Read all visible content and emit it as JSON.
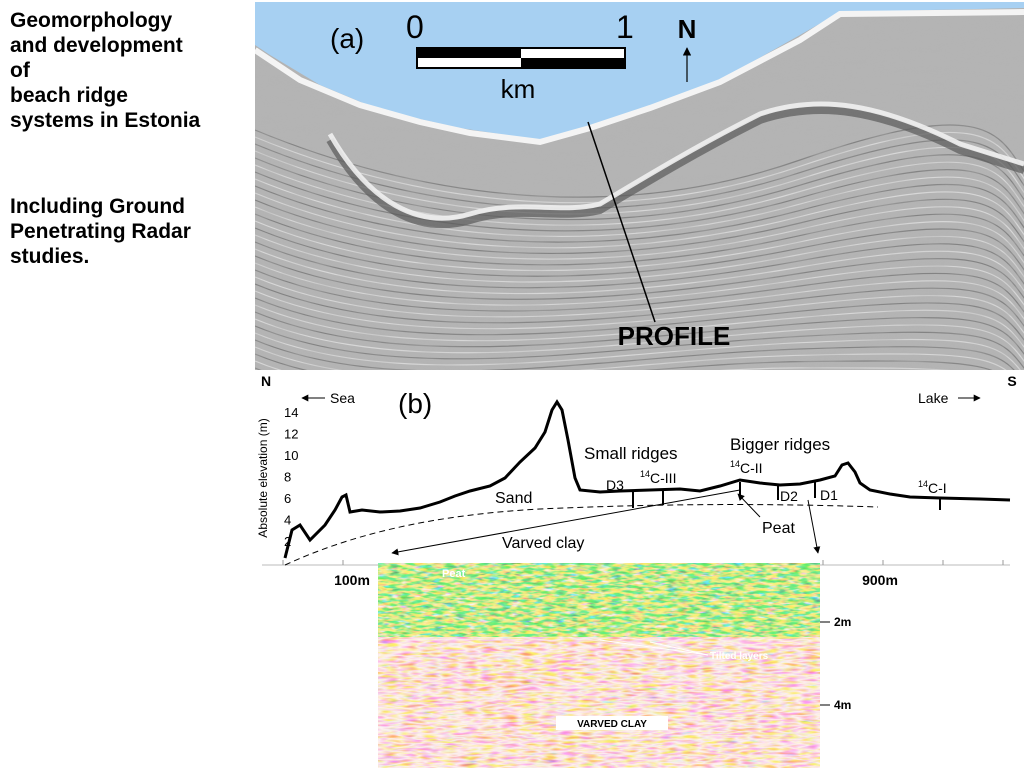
{
  "slide": {
    "title_lines": [
      "Geomorphology",
      "and development",
      "of",
      "beach ridge",
      "systems in Estonia"
    ],
    "subtitle_lines": [
      "Including Ground",
      "Penetrating Radar",
      "studies."
    ]
  },
  "map": {
    "panel": "(a)",
    "scale_start": "0",
    "scale_end": "1",
    "scale_unit": "km",
    "north": "N",
    "profile": "PROFILE"
  },
  "profile": {
    "panel": "(b)",
    "north": "N",
    "south": "S",
    "sea": "Sea",
    "lake": "Lake",
    "y_axis_label": "Absolute elevation (m)",
    "yticks": [
      "14",
      "12",
      "10",
      "8",
      "6",
      "4",
      "2"
    ],
    "small_ridges": "Small ridges",
    "bigger_ridges": "Bigger ridges",
    "sand": "Sand",
    "varved_clay": "Varved clay",
    "peat": "Peat",
    "d3": "D3",
    "d2": "D2",
    "d1": "D1",
    "c14_iii": {
      "sup": "14",
      "text": "C-III"
    },
    "c14_ii": {
      "sup": "14",
      "text": "C-II"
    },
    "c14_i": {
      "sup": "14",
      "text": "C-I"
    },
    "x_start": "100m",
    "x_end": "900m"
  },
  "radar": {
    "peat": "Peat",
    "depth_2": "2m",
    "tilted": "Tilted layers",
    "depth_4": "4m",
    "varved_clay": "VARVED CLAY"
  }
}
